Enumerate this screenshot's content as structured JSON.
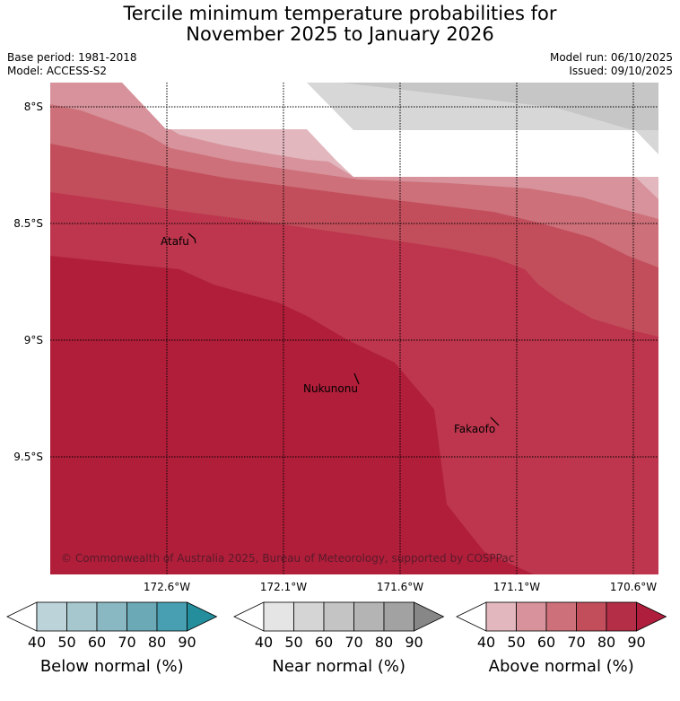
{
  "title_line1": "Tercile minimum temperature probabilities for",
  "title_line2": "November 2025 to January 2026",
  "base_period": "Base period: 1981-2018",
  "model": "Model: ACCESS-S2",
  "model_run": "Model run: 06/10/2025",
  "issued": "Issued: 09/10/2025",
  "lat_ticks": [
    "8°S",
    "8.5°S",
    "9°S",
    "9.5°S"
  ],
  "lon_ticks": [
    "172.6°W",
    "172.1°W",
    "171.6°W",
    "171.1°W",
    "170.6°W"
  ],
  "places": [
    "Atafu",
    "Nukunonu",
    "Fakaofo"
  ],
  "copyright": "© Commonwealth of Australia 2025, Bureau of Meteorology, supported by COSPPac",
  "colorbars": [
    {
      "title": "Below normal (%)",
      "ticks": [
        "40",
        "50",
        "60",
        "70",
        "80",
        "90"
      ],
      "colors": [
        "#ffffff",
        "#bcd3d9",
        "#a6c7cd",
        "#89b8c2",
        "#6aa9b5",
        "#479fb1",
        "#248e9c"
      ]
    },
    {
      "title": "Near normal (%)",
      "ticks": [
        "40",
        "50",
        "60",
        "70",
        "80",
        "90"
      ],
      "colors": [
        "#ffffff",
        "#e5e5e5",
        "#d5d5d5",
        "#c4c4c4",
        "#b4b4b4",
        "#a2a2a2",
        "#878787"
      ]
    },
    {
      "title": "Above normal (%)",
      "ticks": [
        "40",
        "50",
        "60",
        "70",
        "80",
        "90"
      ],
      "colors": [
        "#ffffff",
        "#e2b7be",
        "#d7929b",
        "#cd7079",
        "#c24e5b",
        "#b52e48",
        "#b01e3d"
      ]
    }
  ],
  "colors": {
    "above_40": "#e2b7be",
    "above_50": "#d7929b",
    "above_60": "#cd7079",
    "above_70": "#c24e5b",
    "above_80": "#bd364d",
    "above_90": "#b01e3a",
    "near_50": "#d7d7d7",
    "near_60": "#c6c6c6"
  }
}
